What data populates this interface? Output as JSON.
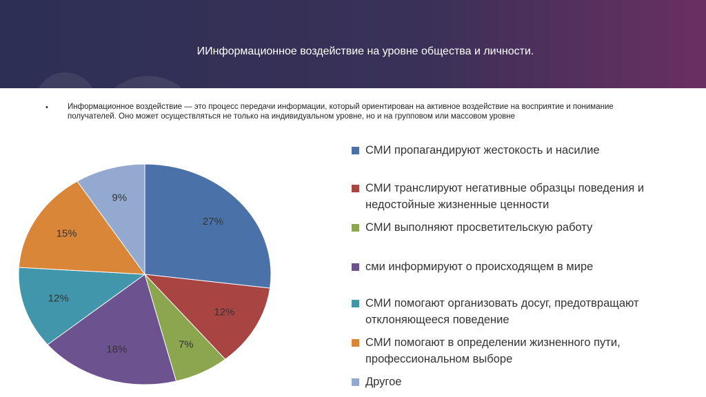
{
  "title": "ИИнформационное воздействие на уровне общества и личности.",
  "bullet": "Информационное воздействие — это процесс передачи информации, который ориентирован на активное воздействие на восприятие и понимание получателей. Оно может осуществляться не только на индивидуальном уровне, но и на групповом или массовом уровне",
  "chart_data": {
    "type": "pie",
    "categories": [
      "СМИ пропагандируют жестокость и насилие",
      "СМИ транслируют негативные образцы поведения и недостойные жизненные ценности",
      "СМИ выполняют просветительскую работу",
      "сми информируют о происходящем в мире",
      "СМИ помогают организовать досуг, предотвращают отклоняющееся поведение",
      "СМИ помогают в определении жизненного пути, профессиональном выборе",
      "Другое"
    ],
    "values": [
      27,
      12,
      7,
      18,
      12,
      15,
      9
    ],
    "value_labels": [
      "27%",
      "12%",
      "7%",
      "18%",
      "12%",
      "15%",
      "9%"
    ],
    "colors": [
      "#4a72a8",
      "#a84543",
      "#8ba64f",
      "#6c5390",
      "#4196ab",
      "#da8639",
      "#94a9d0"
    ]
  }
}
